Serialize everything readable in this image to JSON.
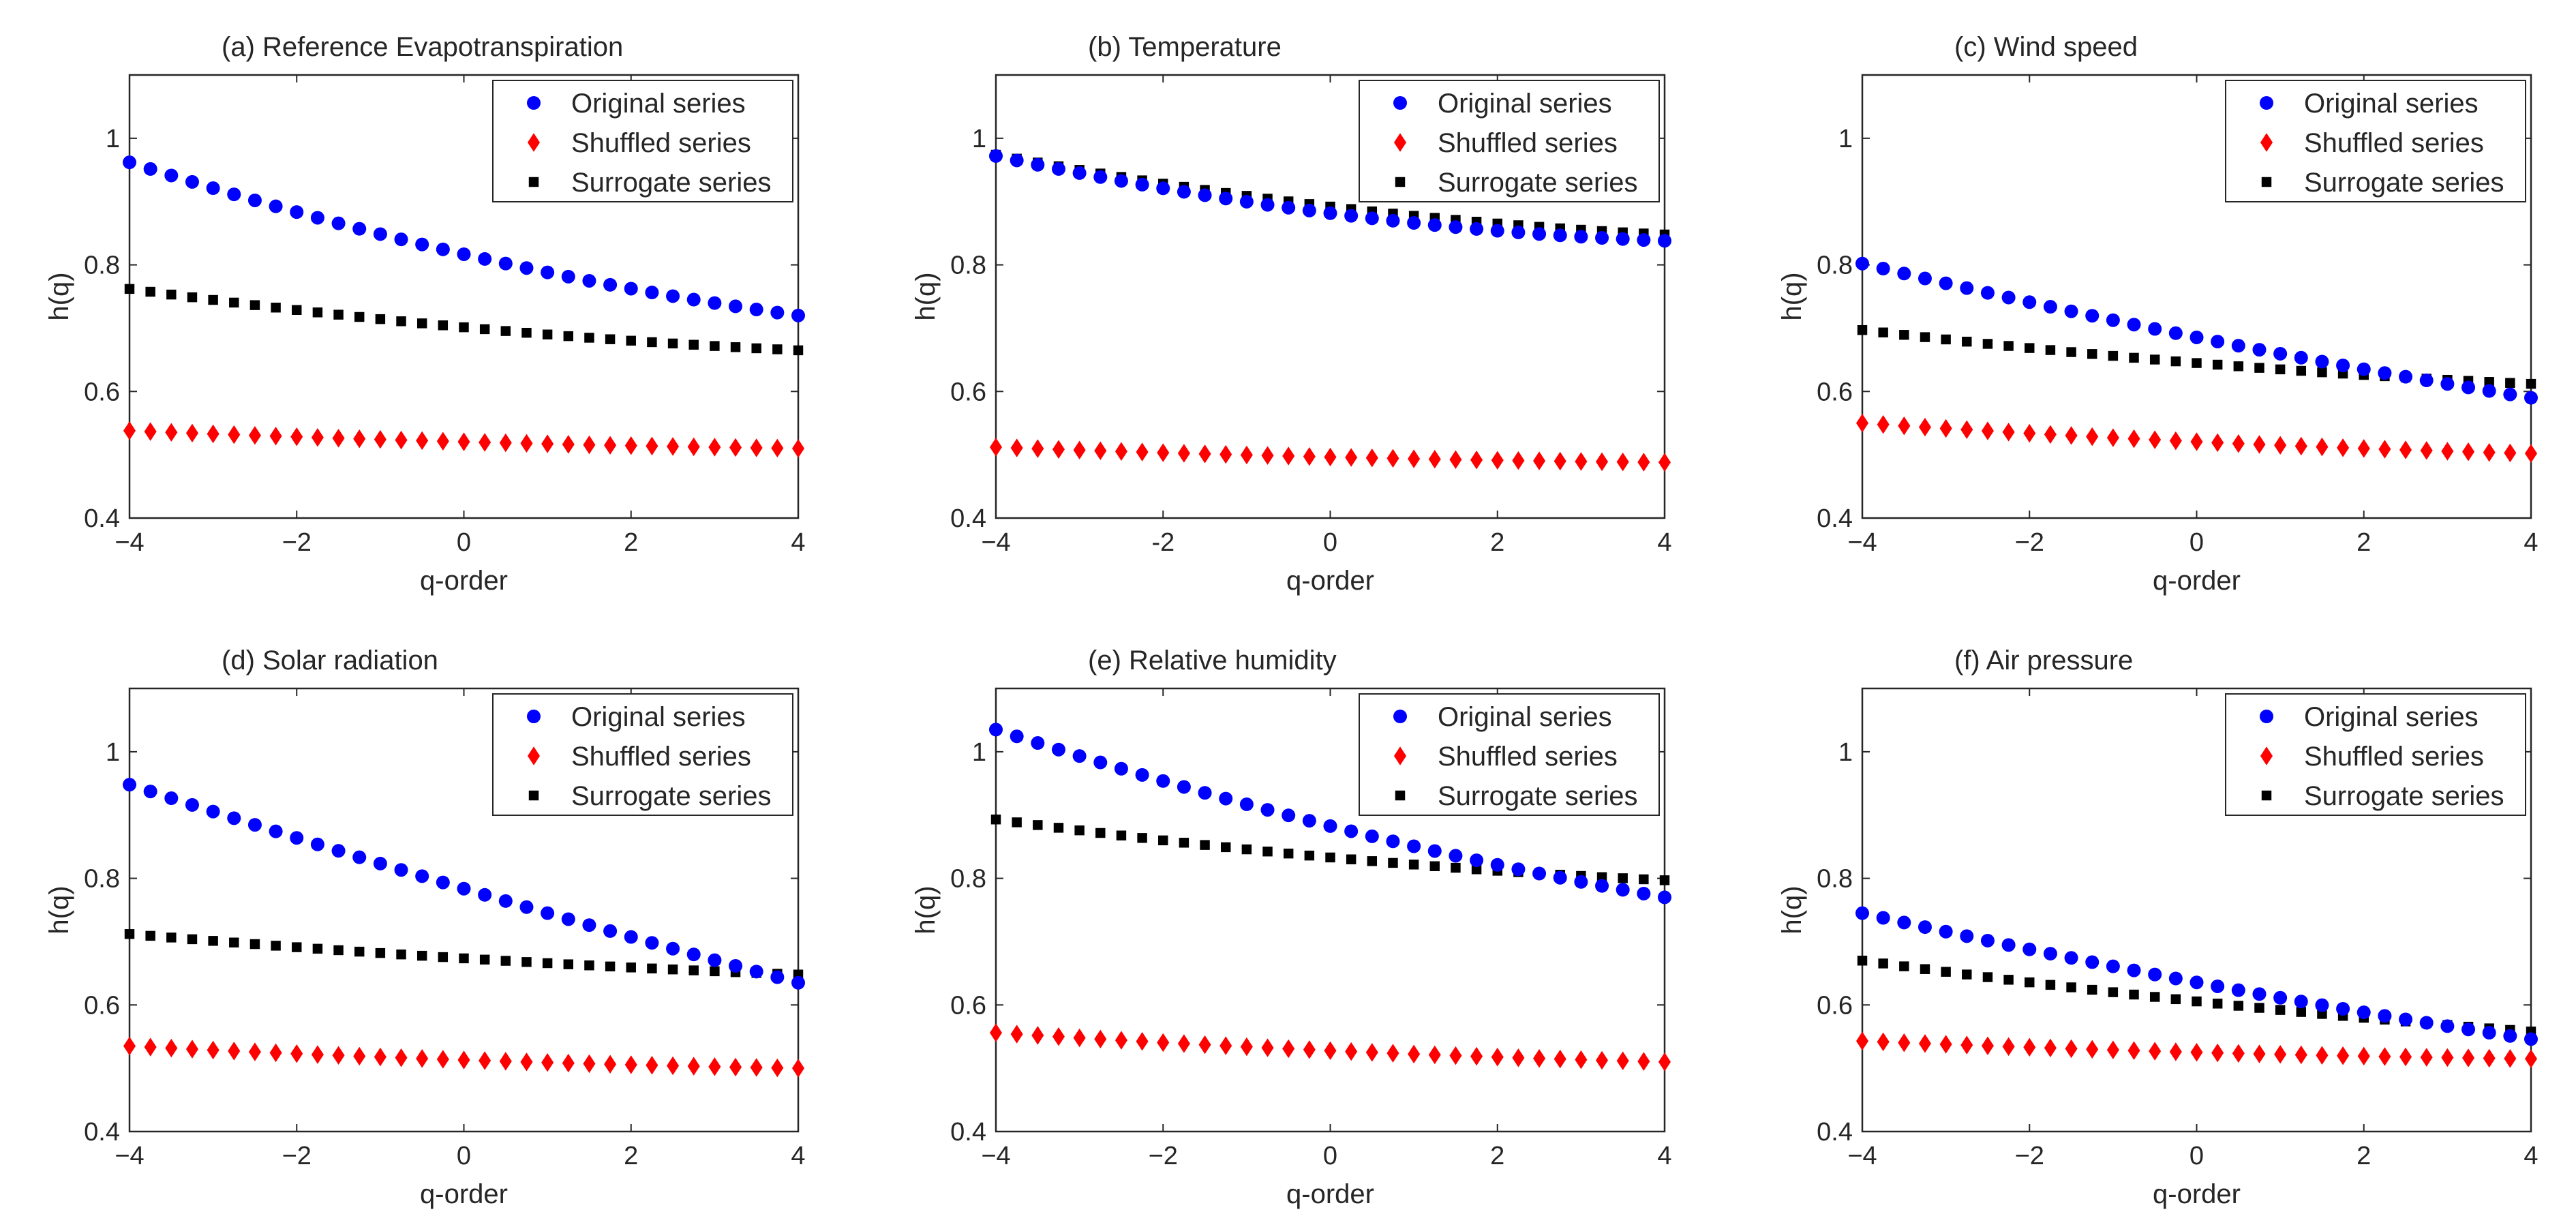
{
  "chart_data": [
    {
      "type": "scatter",
      "title": "(a) Reference Evapotranspiration",
      "xlabel": "q-order",
      "ylabel": "h(q)",
      "xlim": [
        -4,
        4
      ],
      "ylim": [
        0.4,
        1.1
      ],
      "xticks": [
        -4,
        -2,
        0,
        2,
        4
      ],
      "xtick_labels": [
        "−4",
        "−2",
        "0",
        "2",
        "4"
      ],
      "yticks": [
        0.4,
        0.6,
        0.8,
        1.0
      ],
      "ytick_labels": [
        "0.4",
        "0.6",
        "0.8",
        "1"
      ],
      "legend_position": "top-right",
      "series": [
        {
          "name": "Original series",
          "marker": "circle",
          "color": "#0000ff",
          "start": 0.962,
          "end": 0.72,
          "curve": 0.4
        },
        {
          "name": "Shuffled series",
          "marker": "diamond",
          "color": "#ff0000",
          "start": 0.538,
          "end": 0.51,
          "curve": 0.5
        },
        {
          "name": "Surrogate series",
          "marker": "square",
          "color": "#000000",
          "start": 0.762,
          "end": 0.665,
          "curve": 0.5
        }
      ]
    },
    {
      "type": "scatter",
      "title": "(b) Temperature",
      "xlabel": "q-order",
      "ylabel": "h(q)",
      "xlim": [
        -4,
        4
      ],
      "ylim": [
        0.4,
        1.1
      ],
      "xticks": [
        -4,
        -2,
        0,
        2,
        4
      ],
      "xtick_labels": [
        "−4",
        "-2",
        "0",
        "2",
        "4"
      ],
      "yticks": [
        0.4,
        0.6,
        0.8,
        1.0
      ],
      "ytick_labels": [
        "0.4",
        "0.6",
        "0.8",
        "1"
      ],
      "legend_position": "top-right",
      "series": [
        {
          "name": "Original series",
          "marker": "circle",
          "color": "#0000ff",
          "start": 0.972,
          "end": 0.838,
          "curve": 0.7
        },
        {
          "name": "Shuffled series",
          "marker": "diamond",
          "color": "#ff0000",
          "start": 0.512,
          "end": 0.488,
          "curve": 0.6
        },
        {
          "name": "Surrogate series",
          "marker": "square",
          "color": "#000000",
          "start": 0.974,
          "end": 0.848,
          "curve": 0.6
        }
      ]
    },
    {
      "type": "scatter",
      "title": "(c) Wind speed",
      "xlabel": "q-order",
      "ylabel": "h(q)",
      "xlim": [
        -4,
        4
      ],
      "ylim": [
        0.4,
        1.1
      ],
      "xticks": [
        -4,
        -2,
        0,
        2,
        4
      ],
      "xtick_labels": [
        "−4",
        "−2",
        "0",
        "2",
        "4"
      ],
      "yticks": [
        0.4,
        0.6,
        0.8,
        1.0
      ],
      "ytick_labels": [
        "0.4",
        "0.6",
        "0.8",
        "1"
      ],
      "legend_position": "top-right",
      "series": [
        {
          "name": "Original series",
          "marker": "circle",
          "color": "#0000ff",
          "start": 0.802,
          "end": 0.59,
          "curve": 0.2
        },
        {
          "name": "Shuffled series",
          "marker": "diamond",
          "color": "#ff0000",
          "start": 0.55,
          "end": 0.502,
          "curve": 0.45
        },
        {
          "name": "Surrogate series",
          "marker": "square",
          "color": "#000000",
          "start": 0.697,
          "end": 0.612,
          "curve": 0.45
        }
      ]
    },
    {
      "type": "scatter",
      "title": "(d) Solar radiation",
      "xlabel": "q-order",
      "ylabel": "h(q)",
      "xlim": [
        -4,
        4
      ],
      "ylim": [
        0.4,
        1.1
      ],
      "xticks": [
        -4,
        -2,
        0,
        2,
        4
      ],
      "xtick_labels": [
        "−4",
        "−2",
        "0",
        "2",
        "4"
      ],
      "yticks": [
        0.4,
        0.6,
        0.8,
        1.0
      ],
      "ytick_labels": [
        "0.4",
        "0.6",
        "0.8",
        "1"
      ],
      "legend_position": "top-right",
      "series": [
        {
          "name": "Original series",
          "marker": "circle",
          "color": "#0000ff",
          "start": 0.948,
          "end": 0.635,
          "curve": 0.1
        },
        {
          "name": "Shuffled series",
          "marker": "diamond",
          "color": "#ff0000",
          "start": 0.535,
          "end": 0.5,
          "curve": 0.5
        },
        {
          "name": "Surrogate series",
          "marker": "square",
          "color": "#000000",
          "start": 0.712,
          "end": 0.648,
          "curve": 0.4
        }
      ]
    },
    {
      "type": "scatter",
      "title": "(e) Relative humidity",
      "xlabel": "q-order",
      "ylabel": "h(q)",
      "xlim": [
        -4,
        4
      ],
      "ylim": [
        0.4,
        1.1
      ],
      "xticks": [
        -4,
        -2,
        0,
        2,
        4
      ],
      "xtick_labels": [
        "−4",
        "−2",
        "0",
        "2",
        "4"
      ],
      "yticks": [
        0.4,
        0.6,
        0.8,
        1.0
      ],
      "ytick_labels": [
        "0.4",
        "0.6",
        "0.8",
        "1"
      ],
      "legend_position": "top-right",
      "series": [
        {
          "name": "Original series",
          "marker": "circle",
          "color": "#0000ff",
          "start": 1.035,
          "end": 0.77,
          "curve": 0.3
        },
        {
          "name": "Shuffled series",
          "marker": "diamond",
          "color": "#ff0000",
          "start": 0.556,
          "end": 0.51,
          "curve": 0.45
        },
        {
          "name": "Surrogate series",
          "marker": "square",
          "color": "#000000",
          "start": 0.893,
          "end": 0.797,
          "curve": 0.5
        }
      ]
    },
    {
      "type": "scatter",
      "title": "(f) Air pressure",
      "xlabel": "q-order",
      "ylabel": "h(q)",
      "xlim": [
        -4,
        4
      ],
      "ylim": [
        0.4,
        1.1
      ],
      "xticks": [
        -4,
        -2,
        0,
        2,
        4
      ],
      "xtick_labels": [
        "−4",
        "−2",
        "0",
        "2",
        "4"
      ],
      "yticks": [
        0.4,
        0.6,
        0.8,
        1.0
      ],
      "ytick_labels": [
        "0.4",
        "0.6",
        "0.8",
        "1"
      ],
      "legend_position": "top-right",
      "series": [
        {
          "name": "Original series",
          "marker": "circle",
          "color": "#0000ff",
          "start": 0.745,
          "end": 0.546,
          "curve": 0.2
        },
        {
          "name": "Shuffled series",
          "marker": "diamond",
          "color": "#ff0000",
          "start": 0.543,
          "end": 0.515,
          "curve": 0.55
        },
        {
          "name": "Surrogate series",
          "marker": "square",
          "color": "#000000",
          "start": 0.67,
          "end": 0.558,
          "curve": 0.3
        }
      ]
    }
  ]
}
